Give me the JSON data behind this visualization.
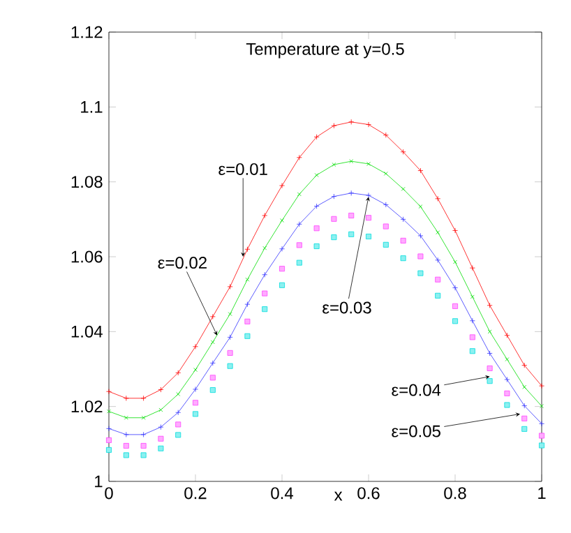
{
  "chart_data": {
    "type": "line",
    "title": "Temperature at y=0.5",
    "xlabel": "x",
    "x": [
      0,
      0.04,
      0.08,
      0.12,
      0.16,
      0.2,
      0.24,
      0.28,
      0.32,
      0.36,
      0.4,
      0.44,
      0.48,
      0.52,
      0.56,
      0.6,
      0.64,
      0.68,
      0.72,
      0.76,
      0.8,
      0.84,
      0.88,
      0.92,
      0.96,
      1
    ],
    "series": [
      {
        "color": "#ff0000",
        "marker": "cross",
        "line_style": "solid",
        "values": [
          1.024,
          1.0222,
          1.0222,
          1.0245,
          1.029,
          1.036,
          1.044,
          1.052,
          1.062,
          1.071,
          1.079,
          1.0865,
          1.092,
          1.095,
          1.096,
          1.0953,
          1.0925,
          1.088,
          1.083,
          1.0755,
          1.067,
          1.057,
          1.047,
          1.039,
          1.031,
          1.0255
        ]
      },
      {
        "color": "#00dd00",
        "marker": "x",
        "line_style": "solid",
        "values": [
          1.0187,
          1.017,
          1.017,
          1.0191,
          1.0233,
          1.0298,
          1.0372,
          1.0447,
          1.0539,
          1.0623,
          1.0697,
          1.0767,
          1.0818,
          1.0846,
          1.0855,
          1.0848,
          1.0822,
          1.0781,
          1.0734,
          1.0665,
          1.0586,
          1.0493,
          1.04,
          1.0326,
          1.0252,
          1.0201
        ]
      },
      {
        "color": "#3333ff",
        "marker": "cross",
        "line_style": "solid",
        "values": [
          1.0141,
          1.0125,
          1.0125,
          1.0145,
          1.0184,
          1.0246,
          1.0316,
          1.0385,
          1.0473,
          1.0552,
          1.0621,
          1.0687,
          1.0735,
          1.0761,
          1.077,
          1.0764,
          1.0739,
          1.07,
          1.0656,
          1.0591,
          1.0517,
          1.0429,
          1.0342,
          1.0272,
          1.0202,
          1.0154
        ]
      },
      {
        "type": "scatter",
        "color": "#ff44ff",
        "marker": "square",
        "line_style": "none",
        "values": [
          1.011,
          1.0095,
          1.0095,
          1.0114,
          1.0152,
          1.021,
          1.0277,
          1.0343,
          1.0427,
          1.0502,
          1.0568,
          1.0631,
          1.0676,
          1.0701,
          1.071,
          1.0704,
          1.0681,
          1.0643,
          1.0601,
          1.0539,
          1.0468,
          1.0385,
          1.0302,
          1.0235,
          1.0168,
          1.0122
        ]
      },
      {
        "type": "scatter",
        "color": "#00dddd",
        "marker": "square",
        "line_style": "none",
        "values": [
          1.0084,
          1.007,
          1.007,
          1.0088,
          1.0124,
          1.018,
          1.0244,
          1.0308,
          1.0388,
          1.046,
          1.0524,
          1.0584,
          1.0628,
          1.0652,
          1.066,
          1.0654,
          1.0632,
          1.0596,
          1.0556,
          1.0496,
          1.0428,
          1.0348,
          1.0268,
          1.0204,
          1.014,
          1.0096
        ]
      }
    ],
    "xlim": [
      0,
      1
    ],
    "ylim": [
      1,
      1.12
    ],
    "xticks": [
      0,
      0.2,
      0.4,
      0.6,
      0.8,
      1
    ],
    "yticks": [
      1,
      1.02,
      1.04,
      1.06,
      1.08,
      1.1,
      1.12
    ],
    "grid": false,
    "annotations": [
      {
        "text": "ε=0.01",
        "x": 0.31,
        "y": 1.06
      },
      {
        "text": "ε=0.02",
        "x": 0.25,
        "y": 1.039
      },
      {
        "text": "ε=0.03",
        "x": 0.6,
        "y": 1.076
      },
      {
        "text": "ε=0.04",
        "x": 0.88,
        "y": 1.028
      },
      {
        "text": "ε=0.05",
        "x": 0.95,
        "y": 1.018
      }
    ]
  }
}
